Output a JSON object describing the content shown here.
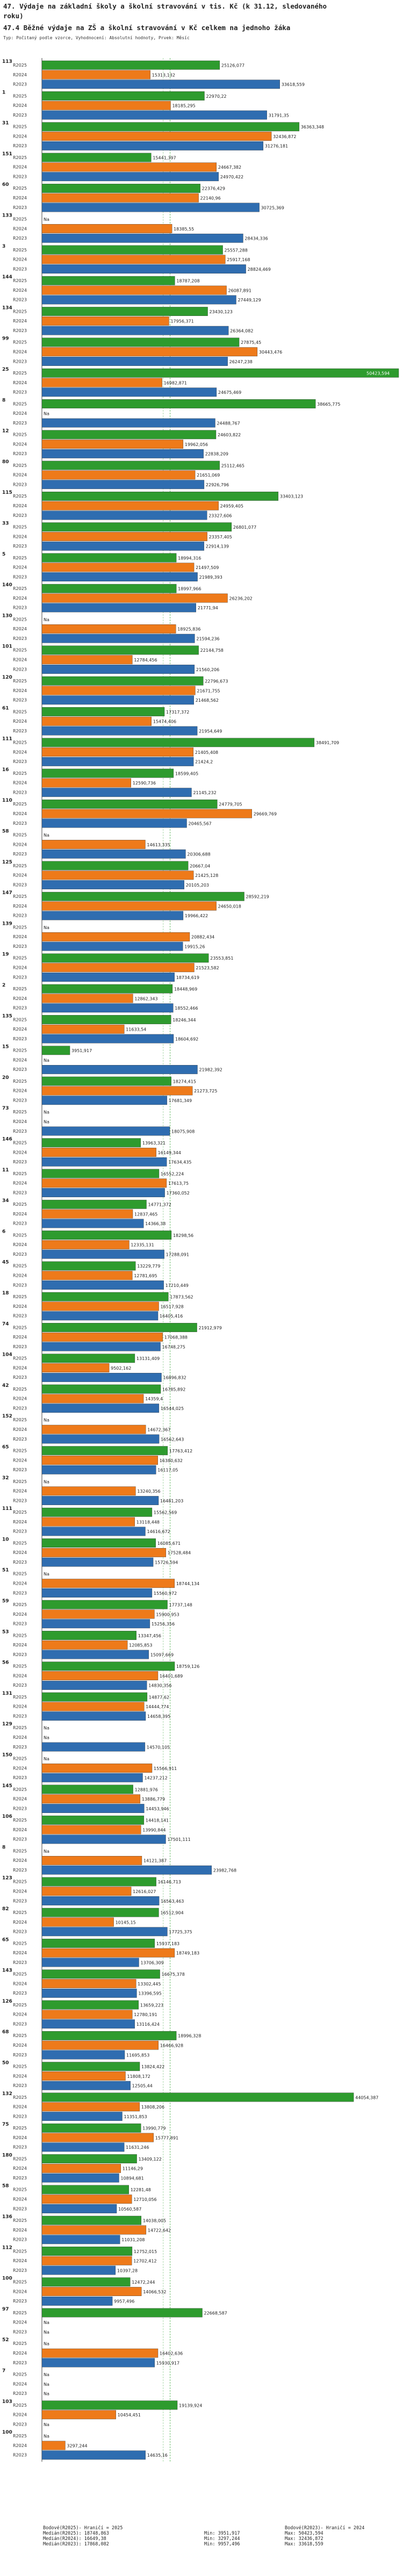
{
  "title": {
    "line1": "47. Výdaje na základní školy a školní stravování v tis. Kč (k 31.12, sledovaného",
    "line2": "roku)",
    "line3": "47.4 Běžné výdaje na ZŠ a školní stravování v Kč celkem na jednoho žáka"
  },
  "subtitle": "Typ: Počitaný podle vzorce, Vyhodnocení: Absolutní hodnoty, Prvek: Měsíc",
  "colors": {
    "2025": "#2e9b2e",
    "2024": "#ee7a1a",
    "2023": "#2f6db0",
    "avg": "#6fbf6f",
    "med": "#a9d8a9"
  },
  "chart_data": {
    "type": "bar",
    "orientation": "horizontal",
    "xlim": [
      0,
      50423.594
    ],
    "years": [
      "R2025",
      "R2024",
      "R2023"
    ],
    "groups": [
      {
        "id": "113",
        "values": [
          25126.077,
          15313.132,
          33618.559
        ],
        "labels": [
          "25126,077",
          "15313,132",
          "33618,559"
        ]
      },
      {
        "id": "1",
        "values": [
          22970.22,
          18185.295,
          31791.35
        ],
        "labels": [
          "22970,22",
          "18185,295",
          "31791,35"
        ]
      },
      {
        "id": "31",
        "values": [
          36363.348,
          32436.872,
          31276.181
        ],
        "labels": [
          "36363,348",
          "32436,872",
          "31276,181"
        ]
      },
      {
        "id": "151",
        "values": [
          15441.397,
          24667.382,
          24970.422
        ],
        "labels": [
          "15441,397",
          "24667,382",
          "24970,422"
        ]
      },
      {
        "id": "60",
        "values": [
          22376.429,
          22140.96,
          30725.369
        ],
        "labels": [
          "22376,429",
          "22140,96",
          "30725,369"
        ]
      },
      {
        "id": "133",
        "values": [
          null,
          18385.55,
          28434.336
        ],
        "labels": [
          "Na",
          "18385,55",
          "28434,336"
        ]
      },
      {
        "id": "3",
        "values": [
          25557.288,
          25917.168,
          28824.469
        ],
        "labels": [
          "25557,288",
          "25917,168",
          "28824,469"
        ]
      },
      {
        "id": "144",
        "values": [
          18787.208,
          26087.891,
          27449.129
        ],
        "labels": [
          "18787,208",
          "26087,891",
          "27449,129"
        ]
      },
      {
        "id": "134",
        "values": [
          23430.123,
          17956.371,
          26364.082
        ],
        "labels": [
          "23430,123",
          "17956,371",
          "26364,082"
        ]
      },
      {
        "id": "99",
        "values": [
          27875.45,
          30443.476,
          26247.238
        ],
        "labels": [
          "27875,45",
          "30443,476",
          "26247,238"
        ]
      },
      {
        "id": "25",
        "values": [
          50423.594,
          16982.871,
          24675.469
        ],
        "labels": [
          "50423,594",
          "16982,871",
          "24675,469"
        ]
      },
      {
        "id": "8",
        "values": [
          38665.775,
          null,
          24488.767
        ],
        "labels": [
          "38665,775",
          "Na",
          "24488,767"
        ]
      },
      {
        "id": "12",
        "values": [
          24603.822,
          19962.056,
          22838.209
        ],
        "labels": [
          "24603,822",
          "19962,056",
          "22838,209"
        ]
      },
      {
        "id": "80",
        "values": [
          25112.465,
          21651.069,
          22926.796
        ],
        "labels": [
          "25112,465",
          "21651,069",
          "22926,796"
        ]
      },
      {
        "id": "115",
        "values": [
          33403.123,
          24959.405,
          23327.606
        ],
        "labels": [
          "33403,123",
          "24959,405",
          "23327,606"
        ]
      },
      {
        "id": "33",
        "values": [
          26801.077,
          23357.405,
          22914.139
        ],
        "labels": [
          "26801,077",
          "23357,405",
          "22914,139"
        ]
      },
      {
        "id": "5",
        "values": [
          18994.316,
          21497.509,
          21989.393
        ],
        "labels": [
          "18994,316",
          "21497,509",
          "21989,393"
        ]
      },
      {
        "id": "140",
        "values": [
          18997.966,
          26236.202,
          21771.94
        ],
        "labels": [
          "18997,966",
          "26236,202",
          "21771,94"
        ]
      },
      {
        "id": "130",
        "values": [
          null,
          18925.836,
          21594.236
        ],
        "labels": [
          "Na",
          "18925,836",
          "21594,236"
        ]
      },
      {
        "id": "101",
        "values": [
          22144.758,
          12784.456,
          21560.206
        ],
        "labels": [
          "22144,758",
          "12784,456",
          "21560,206"
        ]
      },
      {
        "id": "120",
        "values": [
          22796.673,
          21671.755,
          21468.562
        ],
        "labels": [
          "22796,673",
          "21671,755",
          "21468,562"
        ]
      },
      {
        "id": "61",
        "values": [
          17317.372,
          15474.406,
          21954.649
        ],
        "labels": [
          "17317,372",
          "15474,406",
          "21954,649"
        ]
      },
      {
        "id": "111",
        "values": [
          38491.709,
          21405.408,
          21424.2
        ],
        "labels": [
          "38491,709",
          "21405,408",
          "21424,2"
        ]
      },
      {
        "id": "16",
        "values": [
          18599.405,
          12590.736,
          21145.232
        ],
        "labels": [
          "18599,405",
          "12590,736",
          "21145,232"
        ]
      },
      {
        "id": "110",
        "values": [
          24779.705,
          29669.769,
          20465.567
        ],
        "labels": [
          "24779,705",
          "29669,769",
          "20465,567"
        ]
      },
      {
        "id": "58",
        "values": [
          null,
          14613.335,
          20306.688
        ],
        "labels": [
          "Na",
          "14613,335",
          "20306,688"
        ]
      },
      {
        "id": "125",
        "values": [
          20667.04,
          21425.128,
          20105.203
        ],
        "labels": [
          "20667,04",
          "21425,128",
          "20105,203"
        ]
      },
      {
        "id": "147",
        "values": [
          28592.219,
          24650.018,
          19966.422
        ],
        "labels": [
          "28592,219",
          "24650,018",
          "19966,422"
        ]
      },
      {
        "id": "139",
        "values": [
          null,
          20882.434,
          19915.26
        ],
        "labels": [
          "Na",
          "20882,434",
          "19915,26"
        ]
      },
      {
        "id": "19",
        "values": [
          23553.851,
          21523.582,
          18734.619
        ],
        "labels": [
          "23553,851",
          "21523,582",
          "18734,619"
        ]
      },
      {
        "id": "2",
        "values": [
          18448.969,
          12862.343,
          18552.466
        ],
        "labels": [
          "18448,969",
          "12862,343",
          "18552,466"
        ]
      },
      {
        "id": "135",
        "values": [
          18246.344,
          11633.54,
          18604.692
        ],
        "labels": [
          "18246,344",
          "11633,54",
          "18604,692"
        ]
      },
      {
        "id": "15",
        "values": [
          3951.917,
          null,
          21982.392
        ],
        "labels": [
          "3951,917",
          "Na",
          "21982,392"
        ]
      },
      {
        "id": "20",
        "values": [
          18274.415,
          21273.725,
          17681.349
        ],
        "labels": [
          "18274,415",
          "21273,725",
          "17681,349"
        ]
      },
      {
        "id": "73",
        "values": [
          null,
          null,
          18075.908
        ],
        "labels": [
          "Na",
          "Na",
          "18075,908"
        ]
      },
      {
        "id": "146",
        "values": [
          13963.321,
          16149.344,
          17634.435
        ],
        "labels": [
          "13963,321",
          "16149,344",
          "17634,435"
        ]
      },
      {
        "id": "11",
        "values": [
          16552.224,
          17613.75,
          17360.052
        ],
        "labels": [
          "16552,224",
          "17613,75",
          "17360,052"
        ]
      },
      {
        "id": "34",
        "values": [
          14771.372,
          12837.465,
          14366.38
        ],
        "labels": [
          "14771,372",
          "12837,465",
          "14366,38"
        ]
      },
      {
        "id": "6",
        "values": [
          18298.56,
          12335.131,
          17288.091
        ],
        "labels": [
          "18298,56",
          "12335,131",
          "17288,091"
        ]
      },
      {
        "id": "45",
        "values": [
          13229.779,
          12781.695,
          17210.449
        ],
        "labels": [
          "13229,779",
          "12781,695",
          "17210,449"
        ]
      },
      {
        "id": "18",
        "values": [
          17873.562,
          16517.928,
          16405.416
        ],
        "labels": [
          "17873,562",
          "16517,928",
          "16405,416"
        ]
      },
      {
        "id": "74",
        "values": [
          21912.979,
          17068.388,
          16748.275
        ],
        "labels": [
          "21912,979",
          "17068,388",
          "16748,275"
        ]
      },
      {
        "id": "104",
        "values": [
          13131.409,
          9502.162,
          16896.832
        ],
        "labels": [
          "13131,409",
          "9502,162",
          "16896,832"
        ]
      },
      {
        "id": "42",
        "values": [
          16785.892,
          14359.4,
          16544.025
        ],
        "labels": [
          "16785,892",
          "14359,4",
          "16544,025"
        ]
      },
      {
        "id": "152",
        "values": [
          null,
          14672.367,
          16562.643
        ],
        "labels": [
          "Na",
          "14672,367",
          "16562,643"
        ]
      },
      {
        "id": "65",
        "values": [
          17763.412,
          16380.632,
          16117.05
        ],
        "labels": [
          "17763,412",
          "16380,632",
          "16117,05"
        ]
      },
      {
        "id": "32",
        "values": [
          null,
          13240.356,
          16481.203
        ],
        "labels": [
          "Na",
          "13240,356",
          "16481,203"
        ]
      },
      {
        "id": "111",
        "values": [
          15562.569,
          13118.448,
          14616.672
        ],
        "labels": [
          "15562,569",
          "13118,448",
          "14616,672"
        ]
      },
      {
        "id": "10",
        "values": [
          16085.671,
          17528.484,
          15726.594
        ],
        "labels": [
          "16085,671",
          "17528,484",
          "15726,594"
        ]
      },
      {
        "id": "51",
        "values": [
          null,
          18744.134,
          15560.972
        ],
        "labels": [
          "Na",
          "18744,134",
          "15560,972"
        ]
      },
      {
        "id": "59",
        "values": [
          17737.148,
          15900.953,
          15256.356
        ],
        "labels": [
          "17737,148",
          "15900,953",
          "15256,356"
        ]
      },
      {
        "id": "53",
        "values": [
          13347.456,
          12085.853,
          15097.669
        ],
        "labels": [
          "13347,456",
          "12085,853",
          "15097,669"
        ]
      },
      {
        "id": "56",
        "values": [
          18759.126,
          16401.689,
          14830.356
        ],
        "labels": [
          "18759,126",
          "16401,689",
          "14830,356"
        ]
      },
      {
        "id": "131",
        "values": [
          14877.62,
          14444.774,
          14658.395
        ],
        "labels": [
          "14877,62",
          "14444,774",
          "14658,395"
        ]
      },
      {
        "id": "129",
        "values": [
          null,
          null,
          14570.105
        ],
        "labels": [
          "Na",
          "Na",
          "14570,105"
        ]
      },
      {
        "id": "150",
        "values": [
          null,
          15566.911,
          14237.212
        ],
        "labels": [
          "Na",
          "15566,911",
          "14237,212"
        ]
      },
      {
        "id": "145",
        "values": [
          12881.976,
          13886.779,
          14453.946
        ],
        "labels": [
          "12881,976",
          "13886,779",
          "14453,946"
        ]
      },
      {
        "id": "106",
        "values": [
          14418.141,
          13990.844,
          17501.111
        ],
        "labels": [
          "14418,141",
          "13990,844",
          "17501,111"
        ]
      },
      {
        "id": "8",
        "values": [
          null,
          14121.387,
          23982.768
        ],
        "labels": [
          "Na",
          "14121,387",
          "23982,768"
        ]
      },
      {
        "id": "123",
        "values": [
          16146.713,
          12616.027,
          16563.463
        ],
        "labels": [
          "16146,713",
          "12616,027",
          "16563,463"
        ]
      },
      {
        "id": "82",
        "values": [
          16512.904,
          10145.15,
          17725.375
        ],
        "labels": [
          "16512,904",
          "10145,15",
          "17725,375"
        ]
      },
      {
        "id": "65",
        "values": [
          15937.183,
          18749.183,
          13706.309
        ],
        "labels": [
          "15937,183",
          "18749,183",
          "13706,309"
        ]
      },
      {
        "id": "143",
        "values": [
          16675.378,
          13302.445,
          13396.595
        ],
        "labels": [
          "16675,378",
          "13302,445",
          "13396,595"
        ]
      },
      {
        "id": "126",
        "values": [
          13659.223,
          12780.191,
          13116.424
        ],
        "labels": [
          "13659,223",
          "12780,191",
          "13116,424"
        ]
      },
      {
        "id": "68",
        "values": [
          18996.328,
          16466.928,
          11695.853
        ],
        "labels": [
          "18996,328",
          "16466,928",
          "11695,853"
        ]
      },
      {
        "id": "50",
        "values": [
          13824.422,
          11808.172,
          12505.44
        ],
        "labels": [
          "13824,422",
          "11808,172",
          "12505,44"
        ]
      },
      {
        "id": "132",
        "values": [
          44054.387,
          13808.206,
          11351.853
        ],
        "labels": [
          "44054,387",
          "13808,206",
          "11351,853"
        ]
      },
      {
        "id": "75",
        "values": [
          13990.779,
          15777.891,
          11631.246
        ],
        "labels": [
          "13990,779",
          "15777,891",
          "11631,246"
        ]
      },
      {
        "id": "180",
        "values": [
          13409.122,
          11146.29,
          10894.681
        ],
        "labels": [
          "13409,122",
          "11146,29",
          "10894,681"
        ]
      },
      {
        "id": "58",
        "values": [
          12281.48,
          12710.056,
          10560.587
        ],
        "labels": [
          "12281,48",
          "12710,056",
          "10560,587"
        ]
      },
      {
        "id": "136",
        "values": [
          14038.005,
          14722.642,
          11031.208
        ],
        "labels": [
          "14038,005",
          "14722,642",
          "11031,208"
        ]
      },
      {
        "id": "112",
        "values": [
          12752.015,
          12702.412,
          10397.28
        ],
        "labels": [
          "12752,015",
          "12702,412",
          "10397,28"
        ]
      },
      {
        "id": "100",
        "values": [
          12472.244,
          14066.532,
          9957.496
        ],
        "labels": [
          "12472,244",
          "14066,532",
          "9957,496"
        ]
      },
      {
        "id": "97",
        "values": [
          22668.587,
          null,
          null
        ],
        "labels": [
          "22668,587",
          "Na",
          "Na"
        ]
      },
      {
        "id": "52",
        "values": [
          null,
          16402.636,
          15930.917
        ],
        "labels": [
          "Na",
          "16402,636",
          "15930,917"
        ]
      },
      {
        "id": "7",
        "values": [
          null,
          null,
          null
        ],
        "labels": [
          "Na",
          "Na",
          "Na"
        ]
      },
      {
        "id": "103",
        "values": [
          19139.924,
          10454.451,
          null
        ],
        "labels": [
          "19139,924",
          "10454,451",
          "Na"
        ]
      },
      {
        "id": "100",
        "values": [
          null,
          3297.244,
          14635.16
        ],
        "labels": [
          "Na",
          "3297,244",
          "14635,16"
        ]
      }
    ],
    "reference_lines": {
      "avg": 18117.14,
      "median": 17140.2
    }
  },
  "legend": {
    "rows": [
      [
        "Bodové(R2025)- Hraničí = 2025",
        "",
        "Bodové(R2023)- Hraničí = 2024"
      ],
      [
        "Medián(R2025): 18748,863",
        "Min: 3951,917",
        "Max: 50423,594"
      ],
      [
        "Medián(R2024): 16649,38",
        "Min: 3297,244",
        "Max: 32436,872"
      ],
      [
        "Medián(R2023): 17868,082",
        "Min: 9957,496",
        "Max: 33618,559"
      ]
    ]
  }
}
